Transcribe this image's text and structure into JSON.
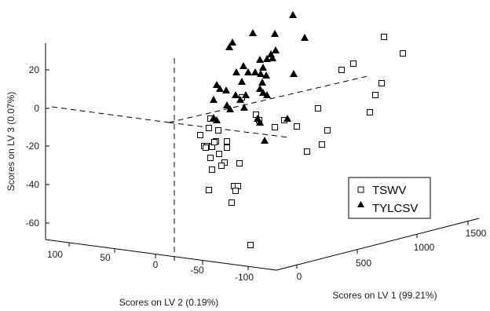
{
  "chart_data": {
    "type": "scatter",
    "projection": "3d",
    "title": "",
    "axes": {
      "x": {
        "label": "Scores on LV 1 (99.21%)",
        "ticks": [
          0,
          500,
          1000,
          1500
        ],
        "range": [
          0,
          1500
        ]
      },
      "y": {
        "label": "Scores on LV 2 (0.19%)",
        "ticks": [
          100,
          50,
          0,
          -50,
          -100
        ],
        "range": [
          -100,
          100
        ]
      },
      "z": {
        "label": "Scores on LV 3 (0.07%)",
        "ticks": [
          20,
          0,
          -20,
          -40,
          -60
        ],
        "range": [
          -65,
          25
        ]
      }
    },
    "grid": false,
    "legend": {
      "position": "right",
      "entries": [
        "TSWV",
        "TYLCSV"
      ]
    },
    "series": [
      {
        "name": "TSWV",
        "marker": "open-square",
        "color": "#000000",
        "points_screen_estimate_lv3": [
          28,
          24,
          22,
          15,
          10,
          7,
          5,
          4,
          3,
          2,
          1,
          0,
          -2,
          -4,
          -5,
          -6,
          -8,
          -9,
          -10,
          -12,
          -13,
          -15,
          -16,
          -17,
          -18,
          -19,
          -20,
          -20,
          -21,
          -22,
          -24,
          -26,
          -28,
          -30,
          -33,
          -38,
          -40,
          -42,
          -44,
          -48,
          -72
        ]
      },
      {
        "name": "TYLCSV",
        "marker": "filled-triangle",
        "color": "#000000",
        "points_screen_estimate_lv3": [
          33,
          30,
          29,
          28,
          27,
          26,
          25,
          24,
          23,
          22,
          21,
          20,
          19,
          18,
          17,
          16,
          15,
          14,
          13,
          12,
          11,
          10,
          9,
          8,
          7,
          6,
          5,
          4,
          3,
          2,
          1,
          0,
          -1,
          -3,
          -5,
          -6,
          -7,
          -16
        ]
      }
    ]
  }
}
